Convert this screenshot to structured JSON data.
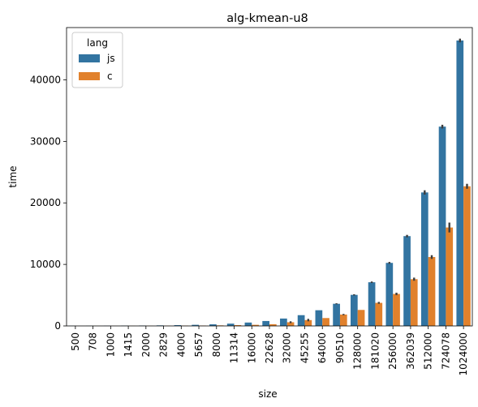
{
  "chart_data": {
    "type": "bar",
    "title": "alg-kmean-u8",
    "xlabel": "size",
    "ylabel": "time",
    "ylim": [
      0,
      48500
    ],
    "yticks": [
      0,
      10000,
      20000,
      30000,
      40000
    ],
    "grid": false,
    "legend": {
      "title": "lang",
      "placement": "top-left"
    },
    "categories": [
      "500",
      "708",
      "1000",
      "1415",
      "2000",
      "2829",
      "4000",
      "5657",
      "8000",
      "11314",
      "16000",
      "22628",
      "32000",
      "45255",
      "64000",
      "90510",
      "128000",
      "181020",
      "256000",
      "362039",
      "512000",
      "724078",
      "1024000"
    ],
    "series": [
      {
        "name": "js",
        "color": "#3274a1",
        "values": [
          15,
          20,
          30,
          45,
          60,
          90,
          130,
          180,
          260,
          370,
          550,
          800,
          1200,
          1750,
          2550,
          3600,
          5050,
          7100,
          10250,
          14600,
          21700,
          32400,
          46400
        ],
        "err": [
          0,
          0,
          0,
          0,
          0,
          0,
          0,
          0,
          0,
          0,
          0,
          0,
          0,
          0,
          0,
          80,
          100,
          120,
          150,
          200,
          350,
          300,
          300
        ]
      },
      {
        "name": "c",
        "color": "#e1812c",
        "values": [
          5,
          8,
          10,
          15,
          20,
          30,
          45,
          60,
          90,
          130,
          180,
          280,
          600,
          950,
          1280,
          1850,
          2600,
          3750,
          5200,
          7600,
          11200,
          16000,
          22700
        ],
        "err": [
          0,
          0,
          0,
          0,
          0,
          0,
          0,
          0,
          0,
          0,
          0,
          0,
          150,
          200,
          0,
          100,
          0,
          150,
          200,
          250,
          300,
          800,
          400
        ]
      }
    ]
  }
}
